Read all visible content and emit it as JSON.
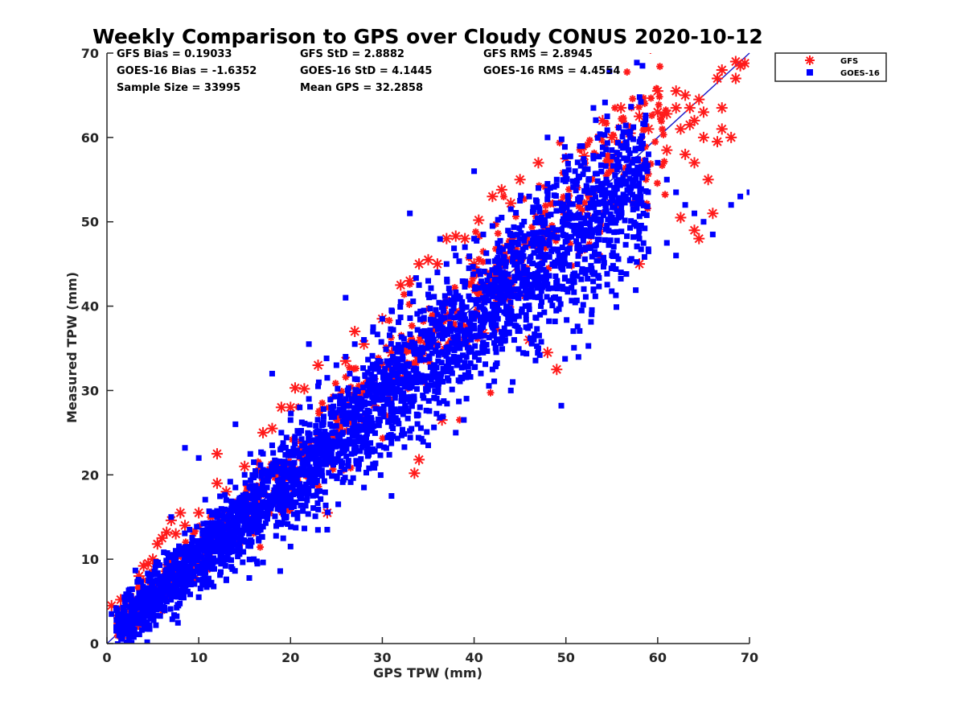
{
  "chart_data": {
    "type": "scatter",
    "title": "Weekly Comparison to GPS over Cloudy CONUS 2020-10-12",
    "xlabel": "GPS TPW (mm)",
    "ylabel": "Measured TPW (mm)",
    "xlim": [
      0,
      70
    ],
    "ylim": [
      0,
      70
    ],
    "xticks": [
      "0",
      "10",
      "20",
      "30",
      "40",
      "50",
      "60",
      "70"
    ],
    "yticks": [
      "0",
      "10",
      "20",
      "30",
      "40",
      "50",
      "60",
      "70"
    ],
    "grid": false,
    "legend_position": "outside-top-right",
    "reference_line": {
      "x": [
        0,
        70
      ],
      "y": [
        0,
        70
      ],
      "color": "#1f1fcc"
    },
    "stats": [
      [
        "GFS Bias = 0.19033",
        "GFS StD = 2.8882",
        "GFS RMS = 2.8945"
      ],
      [
        "GOES-16 Bias = -1.6352",
        "GOES-16 StD = 4.1445",
        "GOES-16 RMS = 4.4554"
      ],
      [
        "Sample Size = 33995",
        "Mean GPS = 32.2858",
        ""
      ]
    ],
    "series": [
      {
        "name": "GFS",
        "marker": "asterisk",
        "color": "#ff1a1a",
        "points": [
          [
            0.5,
            4.5
          ],
          [
            1.5,
            5.2
          ],
          [
            2.5,
            5.5
          ],
          [
            3.5,
            8
          ],
          [
            4,
            9.2
          ],
          [
            4.5,
            9.5
          ],
          [
            5,
            10
          ],
          [
            5.5,
            11.8
          ],
          [
            6,
            12.5
          ],
          [
            6.5,
            13.2
          ],
          [
            7,
            14.6
          ],
          [
            7.5,
            13
          ],
          [
            8,
            15.5
          ],
          [
            8.5,
            14
          ],
          [
            10,
            15.5
          ],
          [
            12,
            19
          ],
          [
            12,
            22.5
          ],
          [
            13,
            18
          ],
          [
            15,
            21
          ],
          [
            17,
            25
          ],
          [
            18,
            25.5
          ],
          [
            19,
            28
          ],
          [
            20,
            28
          ],
          [
            20.5,
            30.3
          ],
          [
            21.5,
            30.2
          ],
          [
            22,
            20
          ],
          [
            23,
            33
          ],
          [
            24,
            15.5
          ],
          [
            25,
            27
          ],
          [
            26,
            33.5
          ],
          [
            27,
            37
          ],
          [
            28,
            35.5
          ],
          [
            30,
            38.5
          ],
          [
            31,
            34.5
          ],
          [
            32,
            42.5
          ],
          [
            33,
            43
          ],
          [
            33.5,
            20.2
          ],
          [
            34,
            21.8
          ],
          [
            34,
            45
          ],
          [
            35,
            45.5
          ],
          [
            36,
            45
          ],
          [
            36.5,
            26.5
          ],
          [
            37,
            48
          ],
          [
            38,
            48.3
          ],
          [
            39,
            48
          ],
          [
            40,
            45
          ],
          [
            40.5,
            50.2
          ],
          [
            41,
            36.8
          ],
          [
            42,
            53
          ],
          [
            43,
            53.8
          ],
          [
            44,
            52.2
          ],
          [
            45,
            55
          ],
          [
            46,
            36
          ],
          [
            47,
            57
          ],
          [
            48,
            34.5
          ],
          [
            49,
            32.5
          ],
          [
            50,
            57.5
          ],
          [
            52,
            57.8
          ],
          [
            54,
            62
          ],
          [
            55,
            60
          ],
          [
            56,
            63.5
          ],
          [
            57,
            60.5
          ],
          [
            58,
            45
          ],
          [
            58,
            62.5
          ],
          [
            59,
            61
          ],
          [
            60,
            65.5
          ],
          [
            60,
            63
          ],
          [
            61,
            58.5
          ],
          [
            61,
            62.8
          ],
          [
            62,
            63.5
          ],
          [
            62,
            65.5
          ],
          [
            62.5,
            50.5
          ],
          [
            63,
            65
          ],
          [
            63,
            58
          ],
          [
            63.5,
            61.5
          ],
          [
            64,
            62
          ],
          [
            64,
            57
          ],
          [
            64.5,
            64.5
          ],
          [
            65,
            60
          ],
          [
            65,
            63
          ],
          [
            65.5,
            55
          ],
          [
            66,
            51
          ],
          [
            66.5,
            59.5
          ],
          [
            67,
            61
          ],
          [
            67,
            63.5
          ],
          [
            66.5,
            67
          ],
          [
            67,
            68
          ],
          [
            68,
            60
          ],
          [
            68.5,
            67
          ],
          [
            68.5,
            69
          ],
          [
            69,
            68.5
          ],
          [
            69.5,
            68.8
          ],
          [
            64.5,
            48
          ],
          [
            64,
            49
          ],
          [
            62.5,
            61
          ],
          [
            63.5,
            63.5
          ]
        ]
      },
      {
        "name": "GOES-16",
        "marker": "square",
        "color": "#0000ff",
        "points": [
          [
            0.5,
            3.5
          ],
          [
            1,
            4.2
          ],
          [
            1.5,
            3.2
          ],
          [
            2,
            4.5
          ],
          [
            2.5,
            5.2
          ],
          [
            3,
            3.8
          ],
          [
            3.5,
            6
          ],
          [
            4,
            4.5
          ],
          [
            5,
            6.5
          ],
          [
            6,
            7
          ],
          [
            7,
            8.5
          ],
          [
            8,
            9.5
          ],
          [
            8.5,
            23.2
          ],
          [
            9,
            13.5
          ],
          [
            10,
            11.5
          ],
          [
            11,
            13
          ],
          [
            12,
            15
          ],
          [
            13,
            17
          ],
          [
            14,
            18.5
          ],
          [
            15,
            20
          ],
          [
            16,
            21.5
          ],
          [
            17,
            22.5
          ],
          [
            18,
            23.5
          ],
          [
            19,
            25
          ],
          [
            20,
            26.5
          ],
          [
            21,
            28
          ],
          [
            22,
            29
          ],
          [
            23,
            30.5
          ],
          [
            24,
            31.5
          ],
          [
            25,
            33
          ],
          [
            26,
            34
          ],
          [
            27,
            35.5
          ],
          [
            28,
            36
          ],
          [
            29,
            37.5
          ],
          [
            30,
            38.5
          ],
          [
            31,
            39.5
          ],
          [
            32,
            40.5
          ],
          [
            33,
            41.5
          ],
          [
            34,
            42.5
          ],
          [
            35,
            43
          ],
          [
            36,
            44
          ],
          [
            37,
            45
          ],
          [
            38,
            46
          ],
          [
            39,
            47
          ],
          [
            40,
            48
          ],
          [
            41,
            48.5
          ],
          [
            42,
            49.5
          ],
          [
            43,
            50.5
          ],
          [
            44,
            51.5
          ],
          [
            45,
            52.5
          ],
          [
            46,
            53
          ],
          [
            47,
            54
          ],
          [
            48,
            54.5
          ],
          [
            49,
            55
          ],
          [
            50,
            55.5
          ],
          [
            51,
            56
          ],
          [
            52,
            57
          ],
          [
            53,
            57.5
          ],
          [
            54,
            58
          ],
          [
            55,
            58.5
          ],
          [
            56,
            59
          ],
          [
            57,
            60
          ],
          [
            58,
            59.5
          ],
          [
            59,
            58
          ],
          [
            60,
            57
          ],
          [
            61,
            55
          ],
          [
            62,
            53.5
          ],
          [
            63,
            52
          ],
          [
            64,
            51
          ],
          [
            65,
            50
          ],
          [
            66,
            48.5
          ],
          [
            68,
            52
          ],
          [
            69,
            53
          ],
          [
            70,
            53.5
          ],
          [
            49.5,
            28.2
          ],
          [
            42,
            32.5
          ],
          [
            38,
            25
          ],
          [
            35,
            23.5
          ],
          [
            31,
            17.5
          ],
          [
            28,
            18.5
          ],
          [
            24,
            13.5
          ],
          [
            20,
            11.5
          ],
          [
            16,
            10
          ],
          [
            13,
            7.5
          ],
          [
            10,
            5.5
          ],
          [
            47,
            35
          ],
          [
            53,
            42
          ],
          [
            56,
            44
          ],
          [
            59,
            46.5
          ],
          [
            44,
            30
          ],
          [
            54.5,
            62.5
          ],
          [
            53,
            63.5
          ],
          [
            48,
            60
          ],
          [
            40,
            56
          ],
          [
            33,
            51
          ],
          [
            26,
            41
          ],
          [
            22,
            35.5
          ],
          [
            18,
            32
          ],
          [
            14,
            26
          ],
          [
            10,
            22
          ],
          [
            7,
            15
          ],
          [
            61,
            47.5
          ],
          [
            62,
            46
          ],
          [
            58,
            48
          ]
        ]
      }
    ]
  }
}
